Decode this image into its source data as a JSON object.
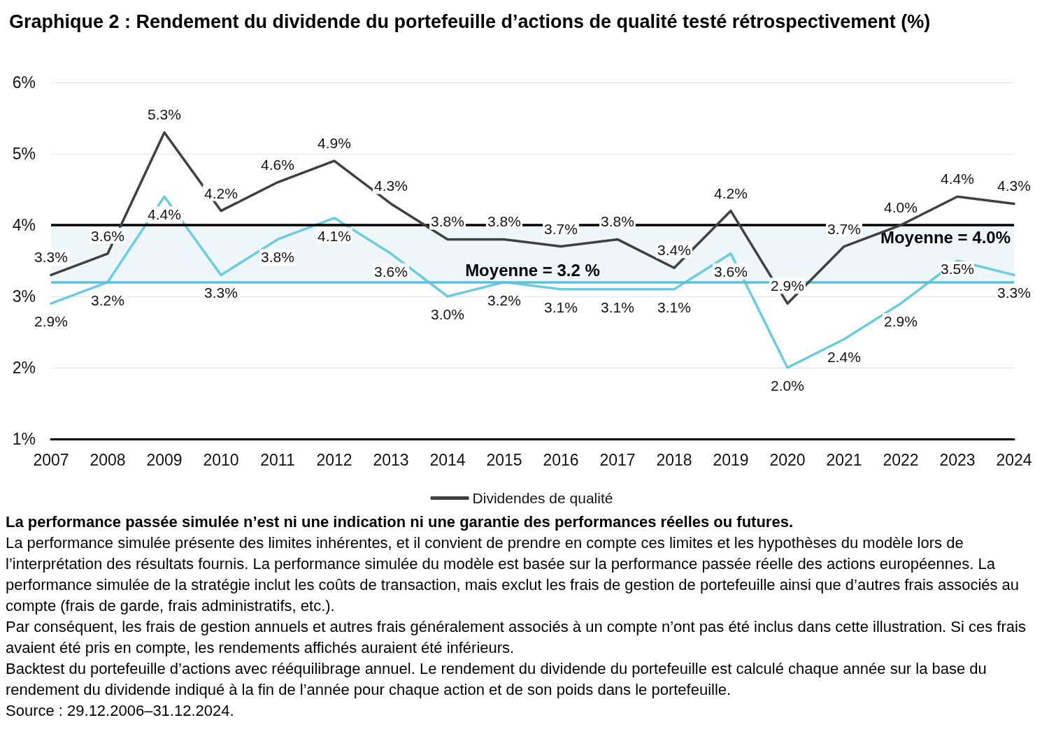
{
  "chart_data": {
    "type": "line",
    "title": "Graphique 2 : Rendement du dividende du portefeuille d’actions de qualité testé rétrospectivement (%)",
    "categories": [
      "2007",
      "2008",
      "2009",
      "2010",
      "2011",
      "2012",
      "2013",
      "2014",
      "2015",
      "2016",
      "2017",
      "2018",
      "2019",
      "2020",
      "2021",
      "2022",
      "2023",
      "2024"
    ],
    "series": [
      {
        "name": "Dividendes de qualité",
        "color": "#404040",
        "values": [
          3.3,
          3.6,
          5.3,
          4.2,
          4.6,
          4.9,
          4.3,
          3.8,
          3.8,
          3.7,
          3.8,
          3.4,
          4.2,
          2.9,
          3.7,
          4.0,
          4.4,
          4.3
        ],
        "value_labels": [
          "3.3%",
          "3.6%",
          "5.3%",
          "4.2%",
          "4.6%",
          "4.9%",
          "4.3%",
          "3.8%",
          "3.8%",
          "3.7%",
          "3.8%",
          "3.4%",
          "4.2%",
          "2.9%",
          "3.7%",
          "4.0%",
          "4.4%",
          "4.3%"
        ]
      },
      {
        "color": "#6ccbe0",
        "values": [
          2.9,
          3.2,
          4.4,
          3.3,
          3.8,
          4.1,
          3.6,
          3.0,
          3.2,
          3.1,
          3.1,
          3.1,
          3.6,
          2.0,
          2.4,
          2.9,
          3.5,
          3.3
        ],
        "value_labels": [
          "2.9%",
          "3.2%",
          "4.4%",
          "3.3%",
          "3.8%",
          "4.1%",
          "3.6%",
          "3.0%",
          "3.2%",
          "3.1%",
          "3.1%",
          "3.1%",
          "3.6%",
          "2.0%",
          "2.4%",
          "2.9%",
          "3.5%",
          "3.3%"
        ]
      }
    ],
    "ylim": [
      1,
      6
    ],
    "yticks": [
      {
        "value": 1,
        "label": "1%"
      },
      {
        "value": 2,
        "label": "2%"
      },
      {
        "value": 3,
        "label": "3%"
      },
      {
        "value": 4,
        "label": "4%"
      },
      {
        "value": 5,
        "label": "5%"
      },
      {
        "value": 6,
        "label": "6%"
      }
    ],
    "grid": "y",
    "legend": "bottom",
    "marker": "none",
    "line_style": "solid",
    "ref_lines": [
      {
        "axis": "y",
        "value": 4.0,
        "label": "Moyenne = 4.0%",
        "color": "#000000"
      },
      {
        "axis": "y",
        "value": 3.2,
        "label": "Moyenne = 3.2 %",
        "color": "#5bc0d8"
      }
    ],
    "bands": [
      {
        "axis": "y",
        "from": 3.2,
        "to": 4.0,
        "color": "#eef6f9"
      }
    ],
    "annotations": [
      "La performance passée simulée n’est ni une indication ni une garantie des performances réelles ou futures.",
      "La performance simulée présente des limites inhérentes, et il convient de prendre en compte ces limites et les hypothèses du modèle lors de l’interprétation des résultats fournis. La performance simulée du modèle est basée sur la performance passée réelle des actions européennes. La performance simulée de la stratégie inclut les coûts de transaction, mais exclut les frais de gestion de portefeuille ainsi que d’autres frais associés au compte (frais de garde, frais administratifs, etc.).",
      "Par conséquent, les frais de gestion annuels et autres frais généralement associés à un compte n’ont pas été inclus dans cette illustration. Si ces frais avaient été pris en compte, les rendements affichés auraient été inférieurs.",
      "Backtest du portefeuille d’actions avec rééquilibrage annuel. Le rendement du dividende du portefeuille est calculé chaque année sur la base du rendement du dividende indiqué à la fin de l’année pour chaque action et de son poids dans le portefeuille.",
      "Source : 29.12.2006–31.12.2024."
    ]
  }
}
